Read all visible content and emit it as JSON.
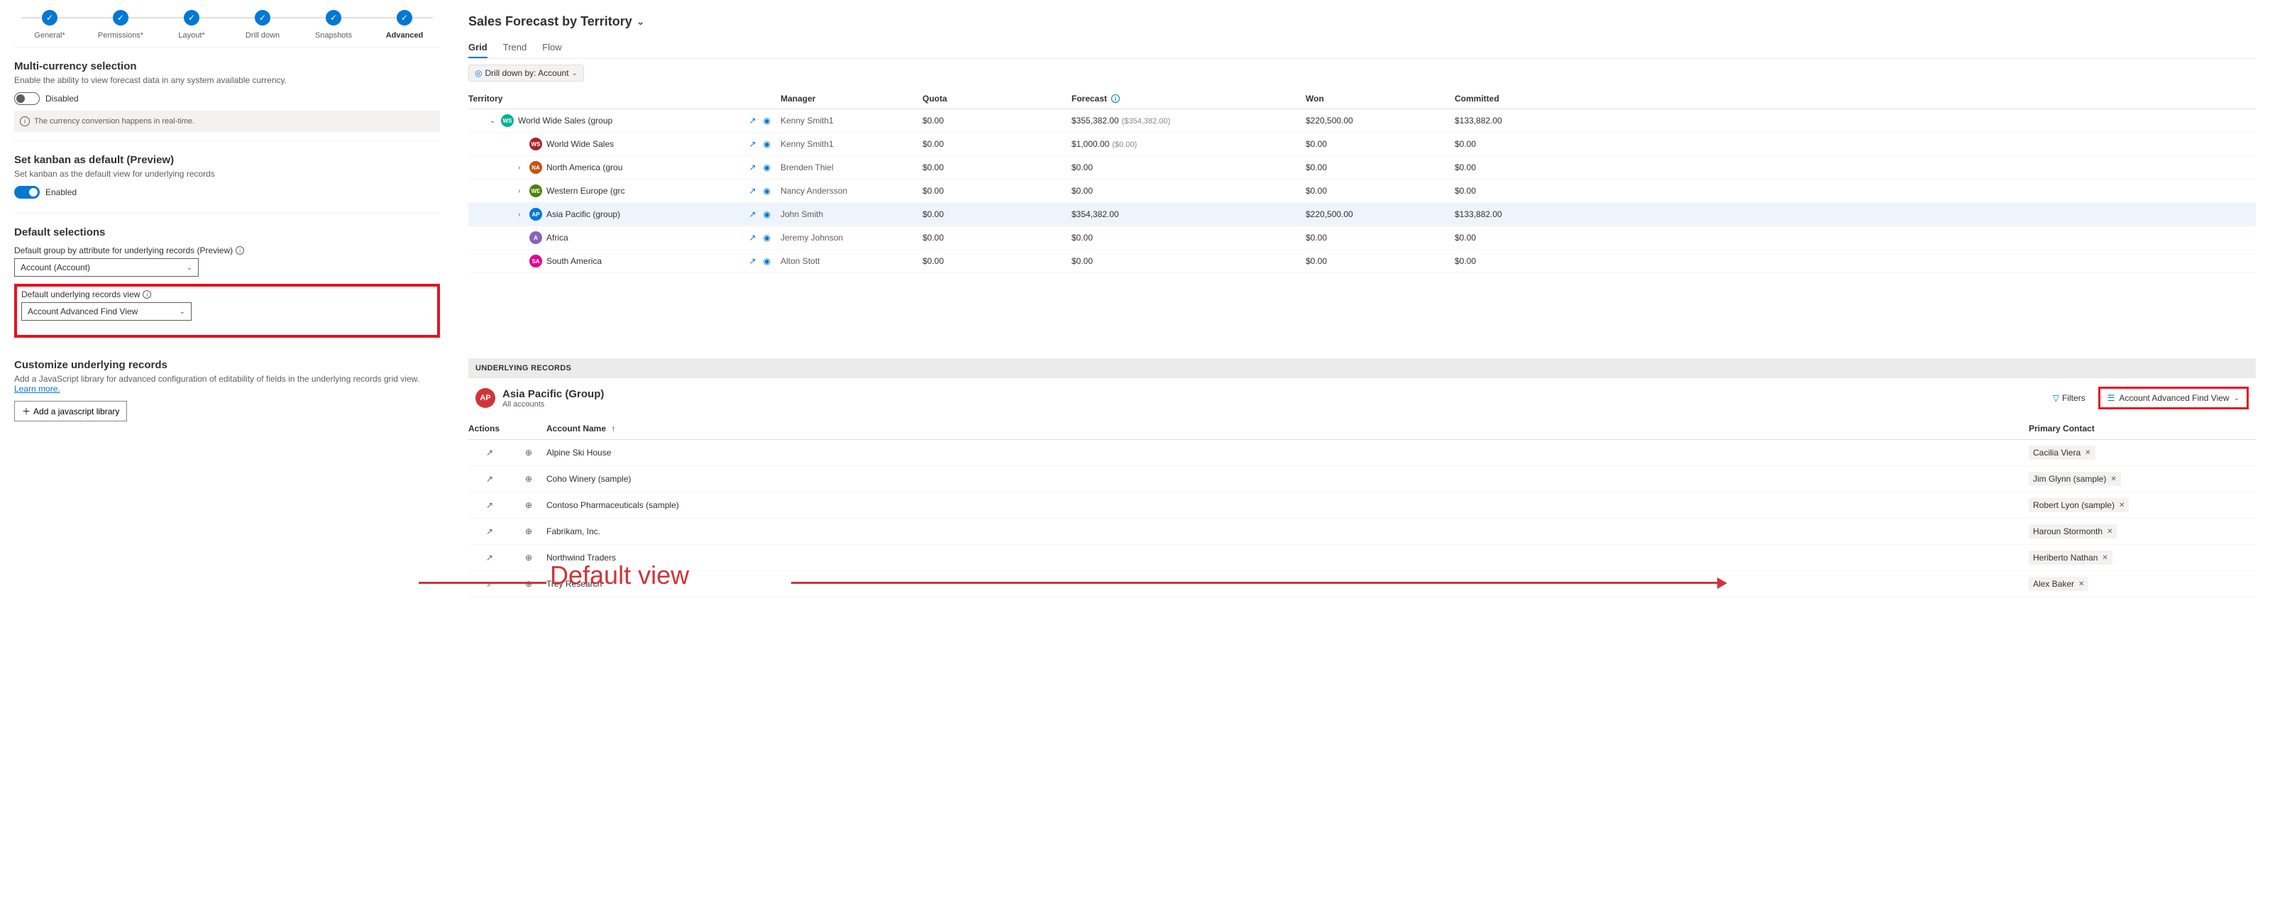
{
  "stepper": {
    "steps": [
      {
        "label": "General*"
      },
      {
        "label": "Permissions*"
      },
      {
        "label": "Layout*"
      },
      {
        "label": "Drill down"
      },
      {
        "label": "Snapshots"
      },
      {
        "label": "Advanced"
      }
    ],
    "active_index": 5
  },
  "multi_currency": {
    "title": "Multi-currency selection",
    "desc": "Enable the ability to view forecast data in any system available currency.",
    "toggle_label": "Disabled",
    "toggle_on": false,
    "info": "The currency conversion happens in real-time."
  },
  "kanban": {
    "title": "Set kanban as default (Preview)",
    "desc": "Set kanban as the default view for underlying records",
    "toggle_label": "Enabled",
    "toggle_on": true
  },
  "default_selections": {
    "title": "Default selections",
    "group_by_label": "Default group by attribute for underlying records (Preview)",
    "group_by_value": "Account (Account)",
    "view_label": "Default underlying records view",
    "view_value": "Account Advanced Find View"
  },
  "customize": {
    "title": "Customize underlying records",
    "desc_pre": "Add a JavaScript library for advanced configuration of editability of fields in the underlying records grid view. ",
    "learn_more": "Learn more.",
    "button": "Add a javascript library"
  },
  "callout_label": "Default view",
  "forecast": {
    "title": "Sales Forecast by Territory",
    "tabs": [
      {
        "label": "Grid",
        "active": true
      },
      {
        "label": "Trend",
        "active": false
      },
      {
        "label": "Flow",
        "active": false
      }
    ],
    "drill_label": "Drill down by: Account",
    "columns": [
      "Territory",
      "Manager",
      "Quota",
      "Forecast",
      "Won",
      "Committed"
    ],
    "rows": [
      {
        "indent": 0,
        "expand": "down",
        "badge": "WS",
        "badge_color": "#00b294",
        "name": "World Wide Sales (group",
        "manager": "Kenny Smith1",
        "quota": "$0.00",
        "forecast": "$355,382.00",
        "forecast_sec": "($354,382.00)",
        "won": "$220,500.00",
        "committed": "$133,882.00",
        "selected": false
      },
      {
        "indent": 1,
        "expand": "",
        "badge": "WS",
        "badge_color": "#a4262c",
        "name": "World Wide Sales",
        "manager": "Kenny Smith1",
        "quota": "$0.00",
        "forecast": "$1,000.00",
        "forecast_sec": "($0.00)",
        "won": "$0.00",
        "committed": "$0.00",
        "selected": false
      },
      {
        "indent": 1,
        "expand": "right",
        "badge": "NA",
        "badge_color": "#ca5010",
        "name": "North America (grou",
        "manager": "Brenden Thiel",
        "quota": "$0.00",
        "forecast": "$0.00",
        "forecast_sec": "",
        "won": "$0.00",
        "committed": "$0.00",
        "selected": false
      },
      {
        "indent": 1,
        "expand": "right",
        "badge": "WE",
        "badge_color": "#498205",
        "name": "Western Europe (grc",
        "manager": "Nancy Andersson",
        "quota": "$0.00",
        "forecast": "$0.00",
        "forecast_sec": "",
        "won": "$0.00",
        "committed": "$0.00",
        "selected": false
      },
      {
        "indent": 1,
        "expand": "right",
        "badge": "AP",
        "badge_color": "#0078d4",
        "name": "Asia Pacific (group)",
        "manager": "John Smith",
        "quota": "$0.00",
        "forecast": "$354,382.00",
        "forecast_sec": "",
        "won": "$220,500.00",
        "committed": "$133,882.00",
        "selected": true
      },
      {
        "indent": 1,
        "expand": "",
        "badge": "A",
        "badge_color": "#8764b8",
        "name": "Africa",
        "manager": "Jeremy Johnson",
        "quota": "$0.00",
        "forecast": "$0.00",
        "forecast_sec": "",
        "won": "$0.00",
        "committed": "$0.00",
        "selected": false
      },
      {
        "indent": 1,
        "expand": "",
        "badge": "SA",
        "badge_color": "#e3008c",
        "name": "South America",
        "manager": "Alton Stott",
        "quota": "$0.00",
        "forecast": "$0.00",
        "forecast_sec": "",
        "won": "$0.00",
        "committed": "$0.00",
        "selected": false
      }
    ]
  },
  "underlying": {
    "header": "UNDERLYING RECORDS",
    "badge": "AP",
    "title": "Asia Pacific (Group)",
    "subtitle": "All accounts",
    "filters_label": "Filters",
    "view_label": "Account Advanced Find View",
    "columns": {
      "actions": "Actions",
      "name": "Account Name",
      "contact": "Primary Contact"
    },
    "rows": [
      {
        "name": "Alpine Ski House",
        "contact": "Cacilia Viera"
      },
      {
        "name": "Coho Winery (sample)",
        "contact": "Jim Glynn (sample)"
      },
      {
        "name": "Contoso Pharmaceuticals (sample)",
        "contact": "Robert Lyon (sample)"
      },
      {
        "name": "Fabrikam, Inc.",
        "contact": "Haroun Stormonth"
      },
      {
        "name": "Northwind Traders",
        "contact": "Heriberto Nathan"
      },
      {
        "name": "Trey Research",
        "contact": "Alex Baker"
      }
    ]
  },
  "colors": {
    "primary": "#0078d4",
    "danger": "#e81123"
  }
}
